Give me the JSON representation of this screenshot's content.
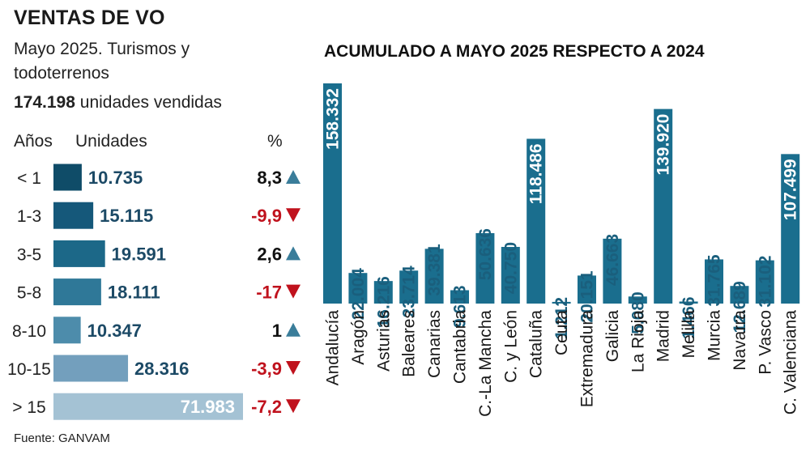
{
  "header": {
    "title": "VENTAS DE VO",
    "subtitle": "Mayo 2025. Turismos y todoterrenos",
    "total_value": "174.198",
    "total_label": "unidades vendidas"
  },
  "left_table": {
    "col_years": "Años",
    "col_units": "Unidades",
    "col_pct": "%"
  },
  "right_title": "ACUMULADO A MAYO 2025 RESPECTO A 2024",
  "source": "Fuente: GANVAM",
  "colors": {
    "up": "#3a7d9a",
    "down": "#c0121d",
    "right_bar": "#1a6e8e",
    "left_bars": [
      "#0f4c68",
      "#15587a",
      "#1c6888",
      "#2f7898",
      "#4d8cab",
      "#739fbd",
      "#a4c2d4"
    ]
  },
  "chart_data": [
    {
      "type": "bar",
      "orientation": "horizontal",
      "categories": [
        "< 1",
        "1-3",
        "3-5",
        "5-8",
        "8-10",
        "10-15",
        "> 15"
      ],
      "values": [
        10735,
        15115,
        19591,
        18111,
        10347,
        28316,
        71983
      ],
      "value_labels": [
        "10.735",
        "15.115",
        "19.591",
        "18.111",
        "10.347",
        "28.316",
        "71.983"
      ],
      "pct_change": [
        8.3,
        -9.9,
        2.6,
        -17,
        1,
        -3.9,
        -7.2
      ],
      "pct_labels": [
        "8,3",
        "-9,9",
        "2,6",
        "-17",
        "1",
        "-3,9",
        "-7,2"
      ],
      "xlim": [
        0,
        71983
      ]
    },
    {
      "type": "bar",
      "orientation": "vertical",
      "title": "ACUMULADO A MAYO 2025 RESPECTO A 2024",
      "categories": [
        "Andalucía",
        "Aragón",
        "Asturias",
        "Baleares",
        "Canarias",
        "Cantabria",
        "C.-La Mancha",
        "C. y León",
        "Cataluña",
        "Ceuta",
        "Extremadura",
        "Galicia",
        "La Rioja",
        "Madrid",
        "Melilla",
        "Murcia",
        "Navarra",
        "P. Vasco",
        "C. Valenciana"
      ],
      "values": [
        158332,
        22004,
        16216,
        23714,
        39381,
        9613,
        50636,
        40750,
        118486,
        1212,
        20151,
        46663,
        5080,
        139920,
        1466,
        31765,
        12689,
        31102,
        107499
      ],
      "value_labels": [
        "158.332",
        "22.004",
        "16.216",
        "23.714",
        "39.381",
        "9.613",
        "50.636",
        "40.750",
        "118.486",
        "1.212",
        "20.151",
        "46.663",
        "5.080",
        "139.920",
        "1.466",
        "31.765",
        "12.689",
        "31.102",
        "107.499"
      ],
      "ylim": [
        0,
        158332
      ]
    }
  ]
}
